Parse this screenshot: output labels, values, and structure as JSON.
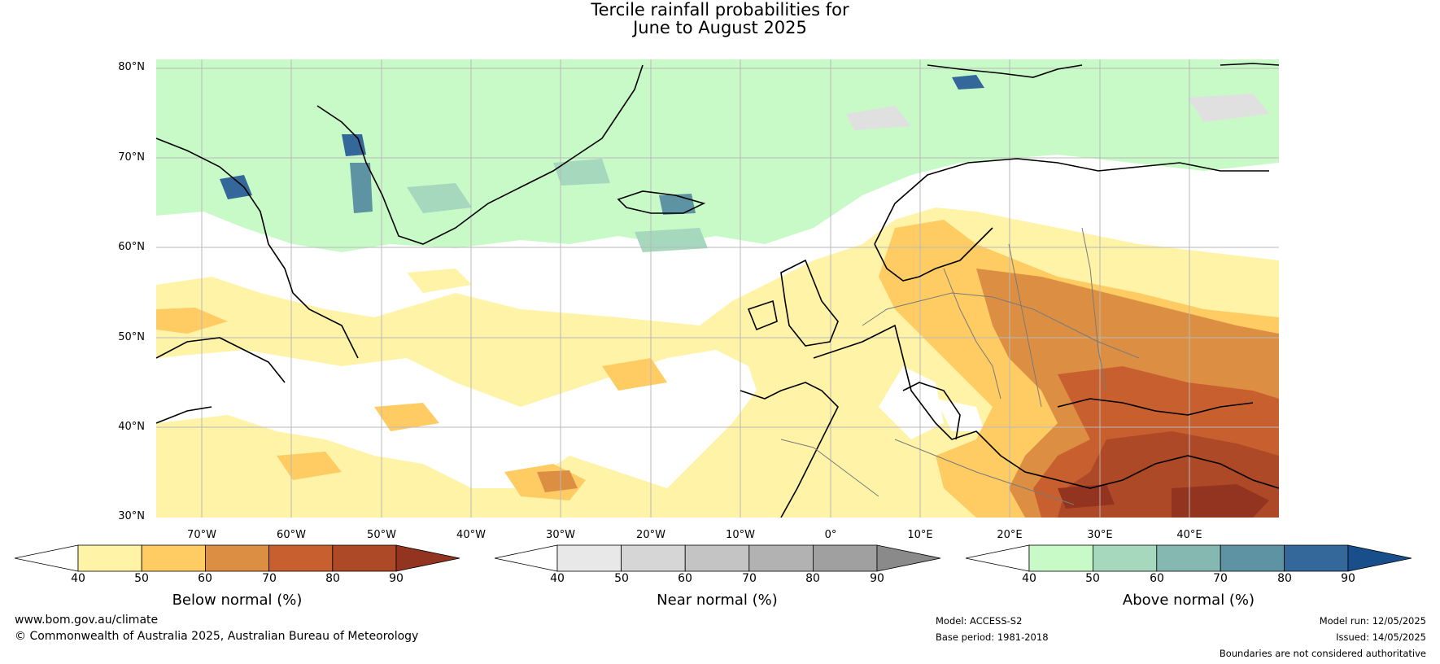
{
  "title_line1": "Tercile rainfall probabilities for",
  "title_line2": "June to August 2025",
  "lat_labels": [
    "80°N",
    "70°N",
    "60°N",
    "50°N",
    "40°N",
    "30°N"
  ],
  "lon_labels": [
    "70°W",
    "60°W",
    "50°W",
    "40°W",
    "30°W",
    "20°W",
    "10°W",
    "0°",
    "10°E",
    "20°E",
    "30°E",
    "40°E"
  ],
  "colorbars": [
    {
      "title": "Below normal (%)",
      "ticks": [
        "40",
        "50",
        "60",
        "70",
        "80",
        "90"
      ],
      "colors": [
        "#fff3a8",
        "#ffcb63",
        "#dc8f42",
        "#c85f2e",
        "#ae4927",
        "#933421"
      ]
    },
    {
      "title": "Near normal (%)",
      "ticks": [
        "40",
        "50",
        "60",
        "70",
        "80",
        "90"
      ],
      "colors": [
        "#e8e8e8",
        "#d6d6d6",
        "#c4c4c4",
        "#b2b2b2",
        "#a0a0a0",
        "#8a8a8a"
      ]
    },
    {
      "title": "Above normal (%)",
      "ticks": [
        "40",
        "50",
        "60",
        "70",
        "80",
        "90"
      ],
      "colors": [
        "#c8fac8",
        "#a5d8bd",
        "#85b8b0",
        "#5e93a3",
        "#34679a",
        "#184f8a"
      ]
    }
  ],
  "footer": {
    "website": "www.bom.gov.au/climate",
    "copyright": "© Commonwealth of Australia 2025, Australian Bureau of Meteorology",
    "model": "Model: ACCESS-S2",
    "base_period": "Base period: 1981-2018",
    "model_run": "Model run: 12/05/2025",
    "issued": "Issued: 14/05/2025",
    "disclaimer": "Boundaries are not considered authoritative"
  }
}
